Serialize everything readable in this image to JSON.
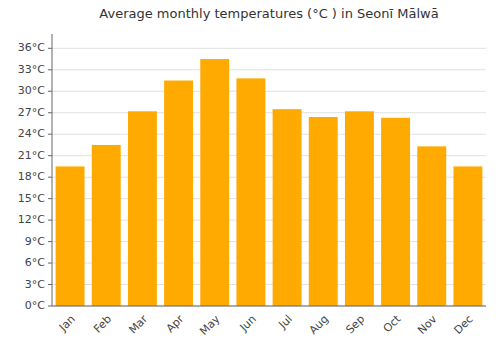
{
  "chart_data": {
    "type": "bar",
    "title": "Average monthly temperatures (°C ) in Seonī Mālwā",
    "categories": [
      "Jan",
      "Feb",
      "Mar",
      "Apr",
      "May",
      "Jun",
      "Jul",
      "Aug",
      "Sep",
      "Oct",
      "Nov",
      "Dec"
    ],
    "values": [
      19.5,
      22.5,
      27.2,
      31.5,
      34.5,
      31.8,
      27.5,
      26.4,
      27.2,
      26.3,
      22.3,
      19.5
    ],
    "color": "#FFAA00",
    "ylim": [
      0,
      38
    ],
    "yticks": [
      {
        "value": 0,
        "label": "0°C"
      },
      {
        "value": 3,
        "label": "3°C"
      },
      {
        "value": 6,
        "label": "6°C"
      },
      {
        "value": 9,
        "label": "9°C"
      },
      {
        "value": 12,
        "label": "12°C"
      },
      {
        "value": 15,
        "label": "15°C"
      },
      {
        "value": 18,
        "label": "18°C"
      },
      {
        "value": 21,
        "label": "21°C"
      },
      {
        "value": 24,
        "label": "24°C"
      },
      {
        "value": 27,
        "label": "27°C"
      },
      {
        "value": 30,
        "label": "30°C"
      },
      {
        "value": 33,
        "label": "33°C"
      },
      {
        "value": 36,
        "label": "36°C"
      }
    ],
    "grid": true
  }
}
